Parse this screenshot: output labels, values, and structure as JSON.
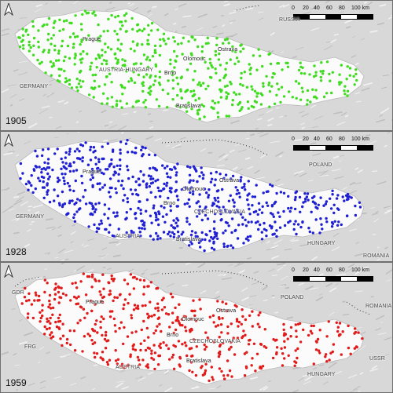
{
  "scale": {
    "ticks": [
      "0",
      "20",
      "40",
      "60",
      "80",
      "100 km"
    ]
  },
  "panels": [
    {
      "year": "1905",
      "dot_color": "#3fdc1f",
      "dot_count": 560,
      "labels": {
        "russia": "RUSSIA",
        "prague": "Prague",
        "germany": "GERMANY",
        "austria_hungary": "AUSTRIA-HUNGARY",
        "olomouc": "Olomouc",
        "ostrava": "Ostrava",
        "brno": "Brno",
        "bratislava": "Bratislava"
      }
    },
    {
      "year": "1928",
      "dot_color": "#1f1fd4",
      "dot_count": 700,
      "labels": {
        "poland": "POLAND",
        "prague": "Prague",
        "germany": "GERMANY",
        "olomouc": "Olomouc",
        "ostrava": "Ostrava",
        "brno": "Brno",
        "czechoslovakia": "CZECHOSLOVAKIA",
        "austria": "AUSTRIA",
        "bratislava": "Bratislava",
        "hungary": "HUNGARY",
        "romania": "ROMANIA"
      }
    },
    {
      "year": "1959",
      "dot_color": "#e21a1a",
      "dot_count": 520,
      "labels": {
        "gdr": "GDR",
        "poland": "POLAND",
        "prague": "Prague",
        "olomouc": "Olomouc",
        "ostrava": "Ostrava",
        "romania": "ROMANIA",
        "frg": "FRG",
        "brno": "Brno",
        "czechoslovakia": "CZECHOSLOVAKIA",
        "austria": "AUSTRIA",
        "bratislava": "Bratislava",
        "hungary": "HUNGARY",
        "ussr": "USSR"
      }
    }
  ]
}
